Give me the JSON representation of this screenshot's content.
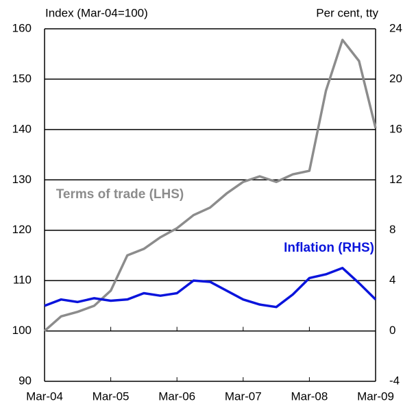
{
  "chart_data": {
    "type": "line",
    "annotations": [
      "Index (Mar-04=100)",
      "Per cent, tty"
    ],
    "categories": [
      "Mar-04",
      null,
      null,
      null,
      "Mar-05",
      null,
      null,
      null,
      "Mar-06",
      null,
      null,
      null,
      "Mar-07",
      null,
      null,
      null,
      "Mar-08",
      null,
      null,
      null,
      "Mar-09"
    ],
    "series": [
      {
        "name": "Terms of trade (LHS)",
        "color": "#8c8c8c",
        "axis": "y",
        "values": [
          100,
          102.9,
          103.8,
          105,
          108,
          115,
          116.3,
          118.6,
          120.4,
          123,
          124.5,
          127.3,
          129.6,
          130.7,
          129.6,
          131.1,
          131.8,
          147.7,
          157.8,
          153.6,
          140.3
        ]
      },
      {
        "name": "Inflation (RHS)",
        "color": "#0a14dc",
        "axis": "y2",
        "values": [
          2.0,
          2.5,
          2.3,
          2.6,
          2.4,
          2.5,
          3.0,
          2.8,
          3.0,
          4.0,
          3.9,
          3.2,
          2.5,
          2.1,
          1.9,
          2.9,
          4.2,
          4.5,
          5.0,
          3.8,
          2.5
        ]
      }
    ],
    "ylim": [
      90,
      160
    ],
    "yticks": [
      90,
      100,
      110,
      120,
      130,
      140,
      150,
      160
    ],
    "y2lim": [
      -4,
      24
    ],
    "y2ticks": [
      -4,
      0,
      4,
      8,
      12,
      16,
      20,
      24
    ],
    "grid": true
  }
}
